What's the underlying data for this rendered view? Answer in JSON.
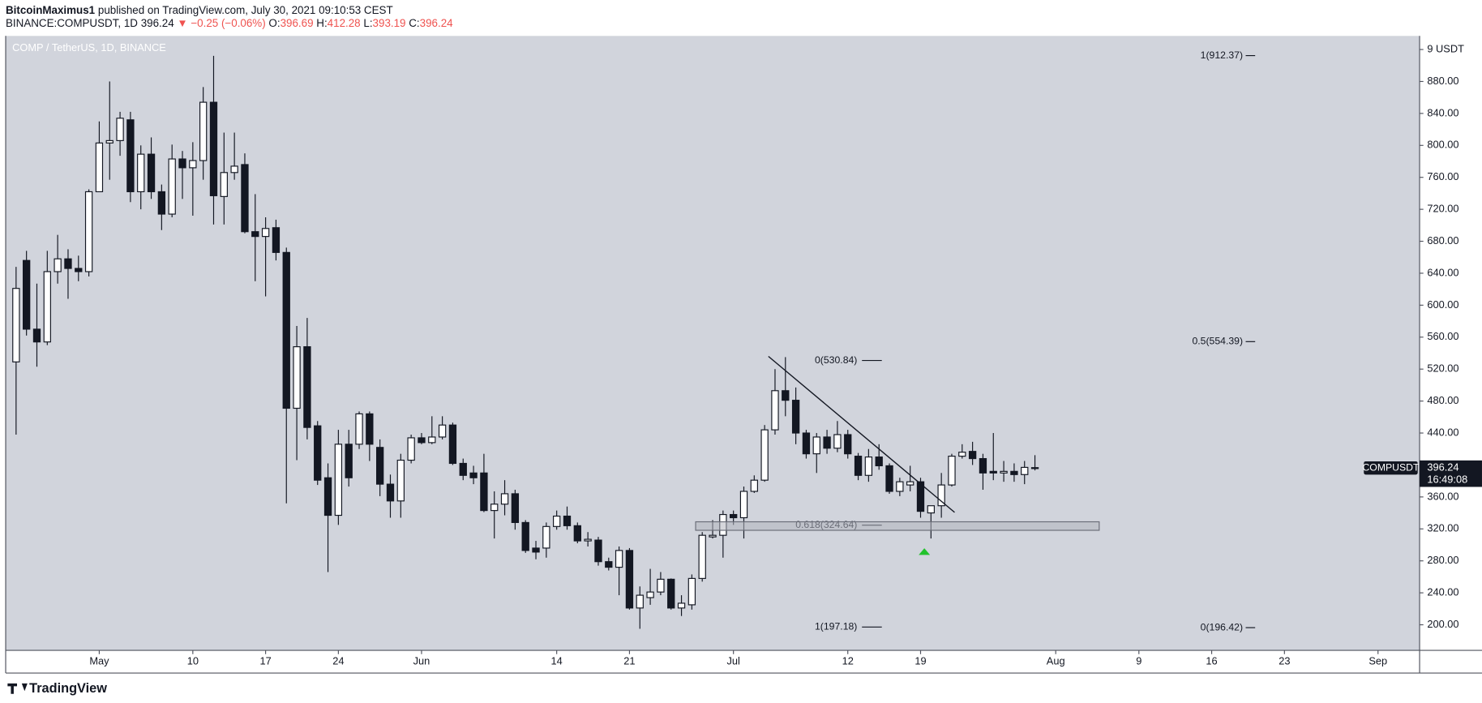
{
  "header": {
    "author": "BitcoinMaximus1",
    "published": "published on TradingView.com, July 30, 2021 09:10:53 CEST",
    "symbol": "BINANCE:COMPUSDT, 1D",
    "last": "396.24",
    "change": "▼ −0.25 (−0.06%)",
    "ohlc": [
      {
        "key": "O:",
        "value": "396.69"
      },
      {
        "key": "H:",
        "value": "412.28"
      },
      {
        "key": "L:",
        "value": "393.19"
      },
      {
        "key": "C:",
        "value": "396.24"
      }
    ]
  },
  "chart_data": {
    "type": "candlestick",
    "title": "COMP / TetherUS, 1D, BINANCE",
    "x": [
      "2021-04-23",
      "2021-04-24",
      "2021-04-25",
      "2021-04-26",
      "2021-04-27",
      "2021-04-28",
      "2021-04-29",
      "2021-04-30",
      "2021-05-01",
      "2021-05-02",
      "2021-05-03",
      "2021-05-04",
      "2021-05-05",
      "2021-05-06",
      "2021-05-07",
      "2021-05-08",
      "2021-05-09",
      "2021-05-10",
      "2021-05-11",
      "2021-05-12",
      "2021-05-13",
      "2021-05-14",
      "2021-05-15",
      "2021-05-16",
      "2021-05-17",
      "2021-05-18",
      "2021-05-19",
      "2021-05-20",
      "2021-05-21",
      "2021-05-22",
      "2021-05-23",
      "2021-05-24",
      "2021-05-25",
      "2021-05-26",
      "2021-05-27",
      "2021-05-28",
      "2021-05-29",
      "2021-05-30",
      "2021-05-31",
      "2021-06-01",
      "2021-06-02",
      "2021-06-03",
      "2021-06-04",
      "2021-06-05",
      "2021-06-06",
      "2021-06-07",
      "2021-06-08",
      "2021-06-09",
      "2021-06-10",
      "2021-06-11",
      "2021-06-12",
      "2021-06-13",
      "2021-06-14",
      "2021-06-15",
      "2021-06-16",
      "2021-06-17",
      "2021-06-18",
      "2021-06-19",
      "2021-06-20",
      "2021-06-21",
      "2021-06-22",
      "2021-06-23",
      "2021-06-24",
      "2021-06-25",
      "2021-06-26",
      "2021-06-27",
      "2021-06-28",
      "2021-06-29",
      "2021-06-30",
      "2021-07-01",
      "2021-07-02",
      "2021-07-03",
      "2021-07-04",
      "2021-07-05",
      "2021-07-06",
      "2021-07-07",
      "2021-07-08",
      "2021-07-09",
      "2021-07-10",
      "2021-07-11",
      "2021-07-12",
      "2021-07-13",
      "2021-07-14",
      "2021-07-15",
      "2021-07-16",
      "2021-07-17",
      "2021-07-18",
      "2021-07-19",
      "2021-07-20",
      "2021-07-21",
      "2021-07-22",
      "2021-07-23",
      "2021-07-24",
      "2021-07-25",
      "2021-07-26",
      "2021-07-27",
      "2021-07-28",
      "2021-07-29",
      "2021-07-30"
    ],
    "open": [
      529,
      656,
      570,
      554,
      642,
      658,
      646,
      642,
      742,
      803,
      806,
      832,
      742,
      789,
      742,
      714,
      783,
      772,
      781,
      854,
      736,
      766,
      776,
      692,
      686,
      697,
      666,
      471,
      548,
      449,
      384,
      337,
      426,
      426,
      464,
      422,
      376,
      355,
      406,
      434,
      428,
      435,
      450,
      402,
      390,
      390,
      343,
      351,
      364,
      328,
      296,
      296,
      323,
      336,
      324,
      305,
      306,
      279,
      272,
      293,
      221,
      234,
      241,
      257,
      221,
      225,
      258,
      310,
      312,
      338,
      334,
      367,
      381,
      444,
      493,
      481,
      440,
      414,
      435,
      421,
      438,
      411,
      387,
      410,
      399,
      367,
      375,
      379,
      340,
      349,
      375,
      411,
      417,
      408,
      392,
      390,
      392,
      388,
      396.69
    ],
    "high": [
      648,
      668,
      627,
      668,
      688,
      670,
      662,
      745,
      830,
      880,
      842,
      842,
      800,
      810,
      751,
      801,
      793,
      804,
      873,
      912,
      816,
      816,
      790,
      739,
      710,
      707,
      672,
      574,
      584,
      455,
      402,
      444,
      444,
      467,
      467,
      432,
      388,
      414,
      438,
      440,
      461,
      461,
      453,
      408,
      399,
      414,
      367,
      381,
      369,
      331,
      305,
      328,
      343,
      348,
      328,
      316,
      310,
      284,
      298,
      296,
      248,
      270,
      266,
      258,
      237,
      263,
      316,
      331,
      343,
      343,
      373,
      387,
      450,
      520,
      535,
      497,
      444,
      440,
      444,
      455,
      444,
      415,
      420,
      426,
      402,
      384,
      399,
      384,
      349,
      390,
      414,
      426,
      429,
      414,
      440,
      405,
      402,
      405,
      412.28
    ],
    "low": [
      438,
      562,
      523,
      550,
      627,
      608,
      630,
      636,
      742,
      757,
      787,
      729,
      720,
      733,
      694,
      710,
      733,
      712,
      757,
      701,
      701,
      757,
      690,
      630,
      611,
      656,
      352,
      406,
      432,
      375,
      266,
      325,
      373,
      420,
      405,
      361,
      334,
      334,
      402,
      426,
      426,
      432,
      400,
      381,
      376,
      341,
      308,
      337,
      319,
      290,
      282,
      284,
      319,
      319,
      302,
      298,
      274,
      268,
      237,
      219,
      195,
      225,
      237,
      219,
      211,
      219,
      254,
      308,
      284,
      325,
      308,
      365,
      379,
      438,
      461,
      426,
      408,
      390,
      414,
      416,
      408,
      381,
      379,
      394,
      364,
      361,
      367,
      334,
      308,
      334,
      373,
      408,
      400,
      369,
      381,
      379,
      379,
      376,
      393.19
    ],
    "close": [
      621,
      570,
      554,
      642,
      658,
      646,
      642,
      742,
      803,
      806,
      834,
      742,
      789,
      742,
      714,
      783,
      772,
      781,
      854,
      737,
      766,
      774,
      692,
      686,
      696,
      666,
      471,
      548,
      447,
      381,
      337,
      426,
      384,
      464,
      426,
      376,
      355,
      406,
      434,
      428,
      435,
      450,
      402,
      387,
      384,
      343,
      351,
      364,
      328,
      293,
      291,
      323,
      336,
      324,
      305,
      307,
      279,
      272,
      293,
      221,
      237,
      241,
      257,
      221,
      227,
      258,
      312,
      312,
      338,
      334,
      367,
      381,
      444,
      493,
      481,
      440,
      414,
      435,
      421,
      438,
      414,
      387,
      410,
      399,
      367,
      379,
      379,
      342,
      349,
      375,
      411,
      416,
      408,
      390,
      390,
      392,
      388,
      397,
      396.24
    ],
    "up_color": "#ffffff",
    "down_color": "#131722",
    "xlim": [
      "2021-04-22",
      "2021-09-05"
    ],
    "xticks": [
      {
        "value": "2021-05-01",
        "label": "May"
      },
      {
        "value": "2021-05-10",
        "label": "10"
      },
      {
        "value": "2021-05-17",
        "label": "17"
      },
      {
        "value": "2021-05-24",
        "label": "24"
      },
      {
        "value": "2021-06-01",
        "label": "Jun"
      },
      {
        "value": "2021-06-14",
        "label": "14"
      },
      {
        "value": "2021-06-21",
        "label": "21"
      },
      {
        "value": "2021-07-01",
        "label": "Jul"
      },
      {
        "value": "2021-07-12",
        "label": "12"
      },
      {
        "value": "2021-07-19",
        "label": "19"
      },
      {
        "value": "2021-08-01",
        "label": "Aug"
      },
      {
        "value": "2021-08-09",
        "label": "9"
      },
      {
        "value": "2021-08-16",
        "label": "16"
      },
      {
        "value": "2021-08-23",
        "label": "23"
      },
      {
        "value": "2021-09-01",
        "label": "Sep"
      }
    ],
    "ylim": [
      168,
      937
    ],
    "yticks": [
      {
        "value": 200,
        "label": "200.00"
      },
      {
        "value": 240,
        "label": "240.00"
      },
      {
        "value": 280,
        "label": "280.00"
      },
      {
        "value": 320,
        "label": "320.00"
      },
      {
        "value": 360,
        "label": "360.00"
      },
      {
        "value": 400,
        "label": "400.00"
      },
      {
        "value": 440,
        "label": "440.00"
      },
      {
        "value": 480,
        "label": "480.00"
      },
      {
        "value": 520,
        "label": "520.00"
      },
      {
        "value": 560,
        "label": "560.00"
      },
      {
        "value": 600,
        "label": "600.00"
      },
      {
        "value": 640,
        "label": "640.00"
      },
      {
        "value": 680,
        "label": "680.00"
      },
      {
        "value": 720,
        "label": "720.00"
      },
      {
        "value": 760,
        "label": "760.00"
      },
      {
        "value": 800,
        "label": "800.00"
      },
      {
        "value": 840,
        "label": "840.00"
      },
      {
        "value": 880,
        "label": "880.00"
      },
      {
        "value": 920,
        "label": "9 USDT"
      }
    ],
    "grid": false,
    "fib_left": [
      {
        "value": 530.84,
        "label": "0(530.84)"
      },
      {
        "value": 324.64,
        "label": "0.618(324.64)"
      },
      {
        "value": 197.18,
        "label": "1(197.18)"
      }
    ],
    "fib_right": [
      {
        "value": 912.37,
        "label": "1(912.37)"
      },
      {
        "value": 554.39,
        "label": "0.5(554.39)"
      },
      {
        "value": 196.42,
        "label": "0(196.42)"
      }
    ],
    "price_label": {
      "symbol": "COMPUSDT",
      "price": 396.24,
      "countdown": "16:49:08"
    }
  },
  "footer": {
    "logo": "TradingView"
  }
}
